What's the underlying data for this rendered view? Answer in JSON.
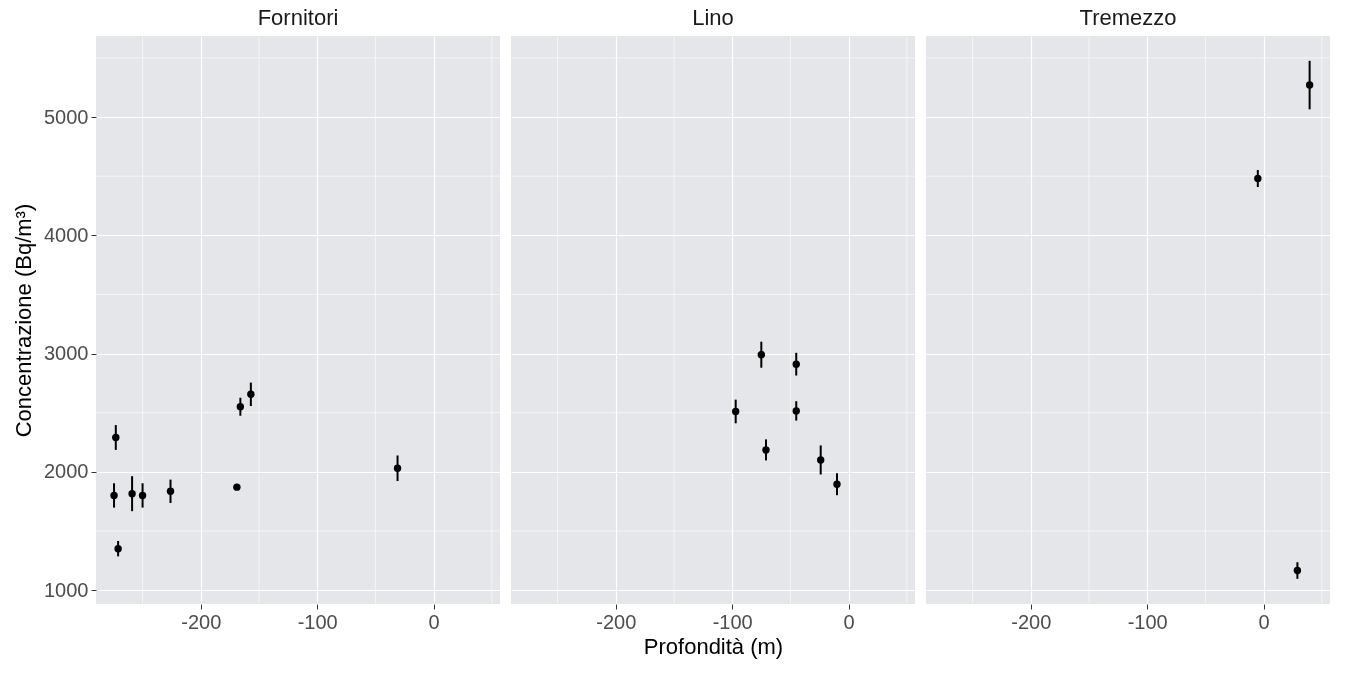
{
  "chart_data": [
    {
      "type": "scatter",
      "title": "Fornitori",
      "ylabel": "Concentrazione (Bq/m³)",
      "x": [
        -273,
        -274.5,
        -271,
        -259,
        -250,
        -226,
        -169,
        -166,
        -157,
        -31
      ],
      "values": [
        2290,
        1800,
        1350,
        1815,
        1800,
        1835,
        1870,
        2550,
        2655,
        2030
      ],
      "errors": [
        105,
        103,
        65,
        148,
        103,
        99,
        20,
        76,
        99,
        108
      ],
      "color": "#000000",
      "marker": "circle",
      "xlim": [
        -290,
        57
      ],
      "ylim": [
        882,
        5685
      ],
      "xticks": [
        -200,
        -100,
        0
      ],
      "yticks": [
        1000,
        2000,
        3000,
        4000,
        5000
      ],
      "grid": true
    },
    {
      "type": "scatter",
      "title": "Lino",
      "xlabel": "Profondità (m)",
      "x": [
        -75,
        -45,
        -97,
        -45,
        -71,
        -24,
        -10
      ],
      "values": [
        2990,
        2910,
        2510,
        2515,
        2185,
        2100,
        1895
      ],
      "errors": [
        110,
        96,
        100,
        82,
        89,
        123,
        93
      ],
      "color": "#000000",
      "marker": "circle",
      "xlim": [
        -290,
        57
      ],
      "ylim": [
        882,
        5685
      ],
      "xticks": [
        -200,
        -100,
        0
      ],
      "yticks": [
        1000,
        2000,
        3000,
        4000,
        5000
      ],
      "grid": true,
      "tick_labels": "x"
    },
    {
      "type": "scatter",
      "title": "Tremezzo",
      "x": [
        39.5,
        -5,
        29
      ],
      "values": [
        5270,
        4480,
        1165
      ],
      "errors": [
        205,
        72,
        70
      ],
      "color": "#000000",
      "marker": "circle",
      "xlim": [
        -290,
        57
      ],
      "ylim": [
        882,
        5685
      ],
      "xticks": [
        -200,
        -100,
        0
      ],
      "yticks": [
        1000,
        2000,
        3000,
        4000,
        5000
      ],
      "grid": true,
      "tick_labels": "x"
    }
  ]
}
